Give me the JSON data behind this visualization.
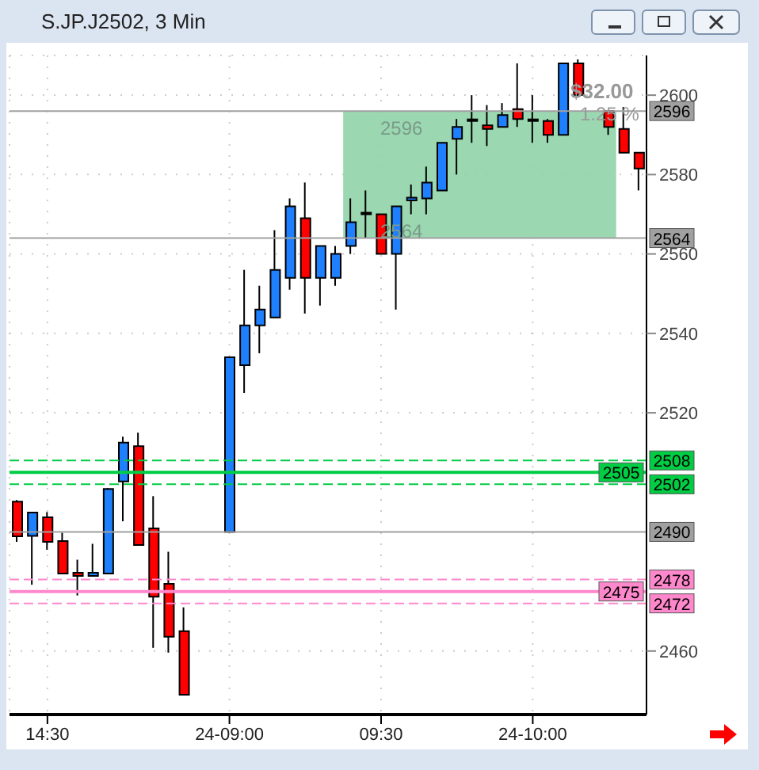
{
  "chart_data": {
    "type": "candlestick",
    "title": "S.JP.J2502, 3 Min",
    "categories": [
      null,
      null,
      "14:30",
      null,
      null,
      null,
      null,
      null,
      null,
      null,
      null,
      null,
      null,
      null,
      "24-09:00",
      null,
      null,
      null,
      null,
      null,
      null,
      null,
      null,
      null,
      "09:30",
      null,
      null,
      null,
      null,
      null,
      null,
      null,
      null,
      null,
      "24-10:00",
      null,
      null,
      null,
      null,
      null,
      null,
      null
    ],
    "ohlc": [
      [
        2497.6,
        2498,
        2487.5,
        2488.9
      ],
      [
        2489,
        2495,
        2476.7,
        2494.9
      ],
      [
        2493.7,
        2495,
        2485.5,
        2487.5
      ],
      [
        2487.7,
        2489.8,
        2479.5,
        2479.5
      ],
      [
        2479.7,
        2483,
        2474,
        2478.9
      ],
      [
        2478.9,
        2487,
        2478.9,
        2479.7
      ],
      [
        2479.5,
        2501,
        2479.5,
        2500.8
      ],
      [
        2502.7,
        2514,
        2492.7,
        2512.5
      ],
      [
        2511.6,
        2515,
        2486.7,
        2486.7
      ],
      [
        2490.9,
        2499,
        2460.8,
        2473.7
      ],
      [
        2476.9,
        2485,
        2459.6,
        2463.6
      ],
      [
        2465,
        2471,
        2449,
        2449
      ],
      null,
      null,
      [
        2490,
        2534,
        2490,
        2534
      ],
      [
        2532,
        2556,
        2525,
        2542
      ],
      [
        2542,
        2552,
        2535,
        2546
      ],
      [
        2544,
        2566,
        2544,
        2556
      ],
      [
        2554,
        2574,
        2551,
        2572
      ],
      [
        2569,
        2578,
        2545,
        2554
      ],
      [
        2554,
        2562,
        2547,
        2562
      ],
      [
        2554,
        2562,
        2552,
        2560
      ],
      [
        2562,
        2574,
        2560,
        2568
      ],
      [
        2570,
        2576,
        2564,
        2570
      ],
      [
        2570,
        2570,
        2560,
        2560
      ],
      [
        2560,
        2572,
        2546,
        2572
      ],
      [
        2573.5,
        2577.5,
        2570,
        2574.2
      ],
      [
        2574,
        2582,
        2570,
        2578
      ],
      [
        2576,
        2588,
        2576,
        2588
      ],
      [
        2589,
        2594,
        2580,
        2592
      ],
      [
        2593.5,
        2600,
        2588,
        2593.5
      ],
      [
        2592.4,
        2597.5,
        2587.2,
        2591.5
      ],
      [
        2592,
        2598,
        2592,
        2595
      ],
      [
        2596.5,
        2608,
        2592,
        2594
      ],
      [
        2593.5,
        2600,
        2588,
        2593.5
      ],
      [
        2593.5,
        2594,
        2588,
        2590
      ],
      [
        2590,
        2608,
        2590,
        2608
      ],
      [
        2608,
        2609,
        2600,
        2600
      ],
      null,
      [
        2596,
        2596,
        2590,
        2592
      ],
      [
        2591.5,
        2597,
        2585.5,
        2585.5
      ],
      [
        2585.5,
        2585.5,
        2576,
        2581.5
      ]
    ],
    "colors": [
      "#ff0000",
      "#1e7fff",
      "#ff0000",
      "#ff0000",
      "#ff0000",
      "#1e7fff",
      "#1e7fff",
      "#1e7fff",
      "#ff0000",
      "#ff0000",
      "#ff0000",
      "#ff0000",
      null,
      null,
      "#1e7fff",
      "#1e7fff",
      "#1e7fff",
      "#1e7fff",
      "#1e7fff",
      "#ff0000",
      "#1e7fff",
      "#1e7fff",
      "#1e7fff",
      "#1e7fff",
      "#ff0000",
      "#1e7fff",
      "#1e7fff",
      "#1e7fff",
      "#1e7fff",
      "#1e7fff",
      "#1e7fff",
      "#ff0000",
      "#1e7fff",
      "#ff0000",
      "#1e7fff",
      "#ff0000",
      "#1e7fff",
      "#ff0000",
      null,
      "#ff0000",
      "#ff0000",
      "#ff0000"
    ],
    "ylim": [
      2444,
      2610
    ],
    "yticks": [
      2460,
      2520,
      2540,
      2560,
      2580,
      2600
    ],
    "grid": true,
    "ref_lines": [
      {
        "axis": "y",
        "value": 2596,
        "label": "2596",
        "color": "#a0a0a0",
        "line_style": "solid"
      },
      {
        "axis": "y",
        "value": 2564,
        "label": "2564",
        "color": "#a0a0a0",
        "line_style": "solid"
      },
      {
        "axis": "y",
        "value": 2508,
        "label": "2508",
        "color": "#00cc44",
        "line_style": "dashed"
      },
      {
        "axis": "y",
        "value": 2505,
        "label": "2505",
        "color": "#00cc44",
        "line_style": "solid"
      },
      {
        "axis": "y",
        "value": 2502,
        "label": "2502",
        "color": "#00cc44",
        "line_style": "dashed"
      },
      {
        "axis": "y",
        "value": 2490,
        "label": "2490",
        "color": "#a0a0a0",
        "line_style": "solid"
      },
      {
        "axis": "y",
        "value": 2478,
        "label": "2478",
        "color": "#ff88cc",
        "line_style": "dashed"
      },
      {
        "axis": "y",
        "value": 2475,
        "label": "2475",
        "color": "#ff88cc",
        "line_style": "solid"
      },
      {
        "axis": "y",
        "value": 2472,
        "label": "2472",
        "color": "#ff88cc",
        "line_style": "dashed"
      }
    ],
    "bands": [
      {
        "axis": "y",
        "from": 2564,
        "to": 2596,
        "color": "#90d4a8"
      }
    ],
    "annotations": [
      "2596",
      "2564",
      "$32.00",
      "1.25 %"
    ]
  }
}
